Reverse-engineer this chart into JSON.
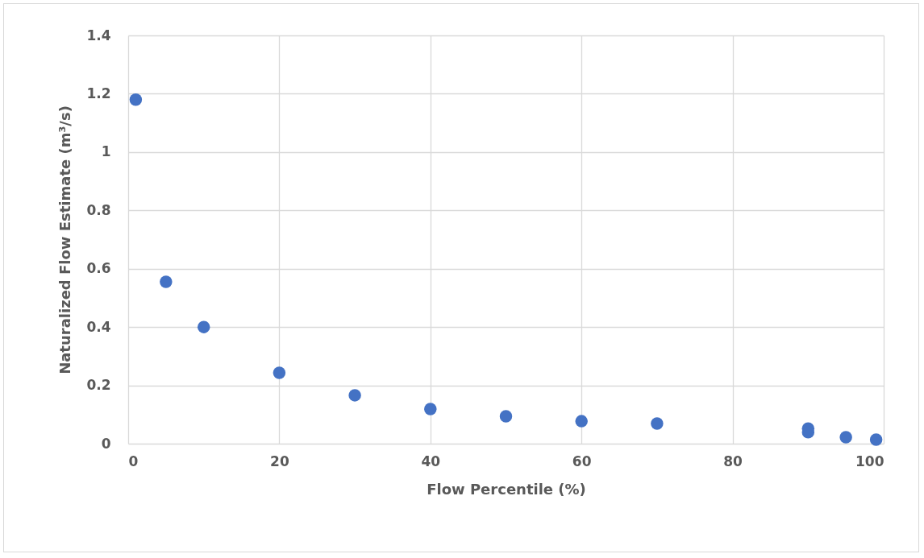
{
  "chart_data": {
    "type": "scatter",
    "xlabel": "Flow Percentile (%)",
    "ylabel": "Naturalized Flow Estimate (m³/s)",
    "x": [
      1,
      5,
      10,
      20,
      30,
      40,
      50,
      60,
      70,
      90,
      90,
      95,
      99
    ],
    "series": [
      {
        "color": "#4472c4",
        "values": [
          1.18,
          0.555,
          0.4,
          0.243,
          0.166,
          0.119,
          0.094,
          0.077,
          0.069,
          0.052,
          0.039,
          0.022,
          0.014
        ]
      }
    ],
    "xlim": [
      0,
      100
    ],
    "xticks": [
      0,
      20,
      40,
      60,
      80,
      100
    ],
    "ylim": [
      0,
      1.4
    ],
    "yticks": [
      0,
      0.2,
      0.4,
      0.6,
      0.8,
      1,
      1.2,
      1.4
    ],
    "grid": true,
    "marker": "circle",
    "legend": false
  }
}
